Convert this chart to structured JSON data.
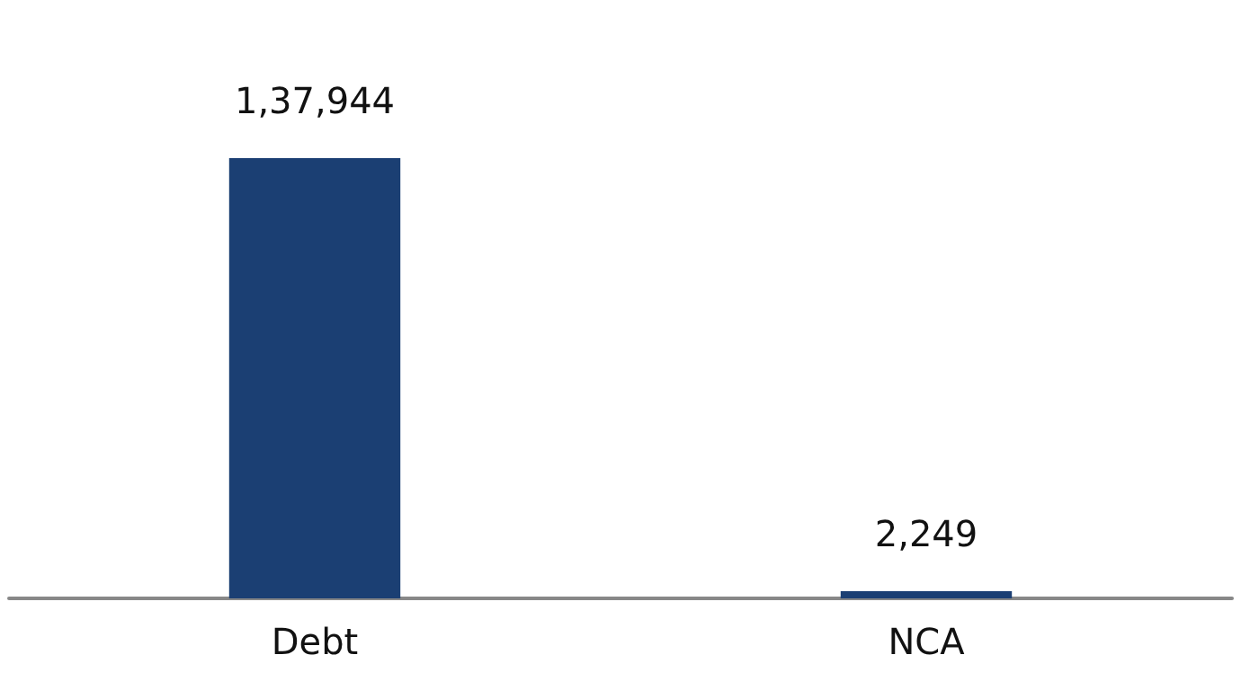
{
  "chart_data": {
    "type": "bar",
    "categories": [
      "Debt",
      "NCA"
    ],
    "values": [
      137944,
      2249
    ],
    "value_labels": [
      "1,37,944",
      "2,249"
    ],
    "color": "#1b3f73",
    "tick_labels": "x"
  }
}
